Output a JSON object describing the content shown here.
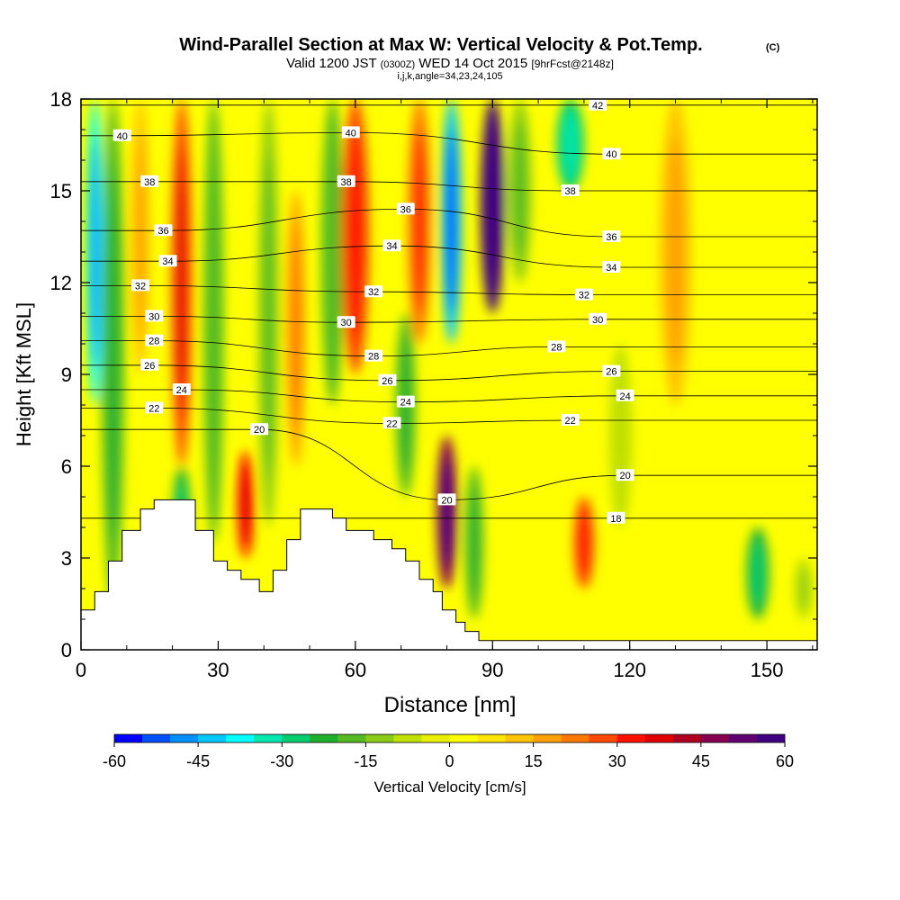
{
  "header": {
    "title": "Wind-Parallel Section at Max W: Vertical Velocity & Pot.Temp.",
    "copyright": "(C)",
    "valid_prefix": "Valid 1200 JST",
    "valid_utc": "(0300Z)",
    "valid_date": "WED 14 Oct 2015",
    "forecast": "[9hrFcst@2148z]",
    "indices": "i,j,k,angle=34,23,24,105"
  },
  "chart_data": {
    "type": "heatmap",
    "xlabel": "Distance [nm]",
    "ylabel": "Height [Kft MSL]",
    "xlim": [
      0,
      161
    ],
    "ylim": [
      0,
      18
    ],
    "x_ticks": [
      0,
      30,
      60,
      90,
      120,
      150
    ],
    "y_ticks": [
      0,
      3,
      6,
      9,
      12,
      15,
      18
    ],
    "colorbar": {
      "label": "Vertical Velocity [cm/s]",
      "range": [
        -60,
        60
      ],
      "ticks": [
        -60,
        -45,
        -30,
        -15,
        0,
        15,
        30,
        45,
        60
      ],
      "colors": [
        "#0000ff",
        "#0050ff",
        "#0090ff",
        "#00c8ff",
        "#00ffff",
        "#00e8b0",
        "#00cc70",
        "#20b030",
        "#55bb20",
        "#8ccc18",
        "#c0e000",
        "#e8f000",
        "#ffff00",
        "#ffe400",
        "#ffc400",
        "#ffa000",
        "#ff7800",
        "#ff4800",
        "#ff1000",
        "#e00000",
        "#b00020",
        "#880050",
        "#600070",
        "#400080"
      ]
    },
    "velocity_columns": [
      {
        "x": 3,
        "w": 1.8,
        "ybot": 8.0,
        "ytop": 18,
        "v": -38
      },
      {
        "x": 7,
        "w": 2.5,
        "ybot": 1.5,
        "ytop": 18,
        "v": -18
      },
      {
        "x": 13,
        "w": 2.0,
        "ybot": 9.0,
        "ytop": 18,
        "v": 14
      },
      {
        "x": 22,
        "w": 2.2,
        "ybot": 6.0,
        "ytop": 18,
        "v": 28
      },
      {
        "x": 22,
        "w": 2.0,
        "ybot": 2.5,
        "ytop": 6.0,
        "v": -22
      },
      {
        "x": 29,
        "w": 2.2,
        "ybot": 3.5,
        "ytop": 18,
        "v": -16
      },
      {
        "x": 36,
        "w": 1.8,
        "ybot": 3.0,
        "ytop": 6.5,
        "v": 30
      },
      {
        "x": 41,
        "w": 2.2,
        "ybot": 4.0,
        "ytop": 18,
        "v": -14
      },
      {
        "x": 47,
        "w": 2.0,
        "ybot": 6.0,
        "ytop": 15,
        "v": 16
      },
      {
        "x": 55,
        "w": 2.5,
        "ybot": 8.0,
        "ytop": 18,
        "v": -16
      },
      {
        "x": 60,
        "w": 3.0,
        "ybot": 9.0,
        "ytop": 18,
        "v": 26
      },
      {
        "x": 71,
        "w": 2.2,
        "ybot": 5.0,
        "ytop": 11,
        "v": -18
      },
      {
        "x": 74,
        "w": 2.5,
        "ybot": 10.0,
        "ytop": 18,
        "v": 24
      },
      {
        "x": 80,
        "w": 2.2,
        "ybot": 2.0,
        "ytop": 7.0,
        "v": 48
      },
      {
        "x": 81,
        "w": 2.2,
        "ybot": 10.0,
        "ytop": 18,
        "v": -44
      },
      {
        "x": 86,
        "w": 2.0,
        "ybot": 1.0,
        "ytop": 6.0,
        "v": -18
      },
      {
        "x": 90,
        "w": 2.6,
        "ybot": 11.0,
        "ytop": 18,
        "v": 55
      },
      {
        "x": 96,
        "w": 2.5,
        "ybot": 12.0,
        "ytop": 18,
        "v": -14
      },
      {
        "x": 107,
        "w": 3.0,
        "ybot": 15.0,
        "ytop": 18,
        "v": -28
      },
      {
        "x": 110,
        "w": 2.2,
        "ybot": 2.0,
        "ytop": 5.0,
        "v": 26
      },
      {
        "x": 118,
        "w": 2.5,
        "ybot": 4.0,
        "ytop": 10.0,
        "v": -8
      },
      {
        "x": 130,
        "w": 3.5,
        "ybot": 8.0,
        "ytop": 18,
        "v": 14
      },
      {
        "x": 148,
        "w": 2.5,
        "ybot": 1.0,
        "ytop": 4.0,
        "v": -24
      },
      {
        "x": 158,
        "w": 2.0,
        "ybot": 1.0,
        "ytop": 3.0,
        "v": -10
      }
    ],
    "theta_contour_labels": [
      {
        "value": "40",
        "x": 9,
        "y": 16.8
      },
      {
        "value": "38",
        "x": 15,
        "y": 15.3
      },
      {
        "value": "36",
        "x": 18,
        "y": 13.7
      },
      {
        "value": "34",
        "x": 19,
        "y": 12.7
      },
      {
        "value": "32",
        "x": 13,
        "y": 11.9
      },
      {
        "value": "30",
        "x": 16,
        "y": 10.9
      },
      {
        "value": "28",
        "x": 16,
        "y": 10.1
      },
      {
        "value": "26",
        "x": 15,
        "y": 9.3
      },
      {
        "value": "24",
        "x": 22,
        "y": 8.5
      },
      {
        "value": "22",
        "x": 16,
        "y": 7.9
      },
      {
        "value": "20",
        "x": 39,
        "y": 7.2
      },
      {
        "value": "40",
        "x": 59,
        "y": 16.9
      },
      {
        "value": "38",
        "x": 58,
        "y": 15.3
      },
      {
        "value": "36",
        "x": 71,
        "y": 14.4
      },
      {
        "value": "34",
        "x": 68,
        "y": 13.2
      },
      {
        "value": "32",
        "x": 64,
        "y": 11.7
      },
      {
        "value": "30",
        "x": 58,
        "y": 10.7
      },
      {
        "value": "28",
        "x": 64,
        "y": 9.6
      },
      {
        "value": "26",
        "x": 67,
        "y": 8.8
      },
      {
        "value": "24",
        "x": 71,
        "y": 8.1
      },
      {
        "value": "22",
        "x": 68,
        "y": 7.4
      },
      {
        "value": "20",
        "x": 80,
        "y": 4.9
      },
      {
        "value": "42",
        "x": 113,
        "y": 17.8
      },
      {
        "value": "40",
        "x": 116,
        "y": 16.2
      },
      {
        "value": "38",
        "x": 107,
        "y": 15.0
      },
      {
        "value": "36",
        "x": 116,
        "y": 13.5
      },
      {
        "value": "34",
        "x": 116,
        "y": 12.5
      },
      {
        "value": "32",
        "x": 110,
        "y": 11.6
      },
      {
        "value": "30",
        "x": 113,
        "y": 10.8
      },
      {
        "value": "28",
        "x": 104,
        "y": 9.9
      },
      {
        "value": "26",
        "x": 116,
        "y": 9.1
      },
      {
        "value": "24",
        "x": 119,
        "y": 8.3
      },
      {
        "value": "22",
        "x": 107,
        "y": 7.5
      },
      {
        "value": "20",
        "x": 119,
        "y": 5.7
      },
      {
        "value": "18",
        "x": 117,
        "y": 4.3
      }
    ],
    "terrain": [
      [
        0,
        1.3
      ],
      [
        3,
        1.3
      ],
      [
        3,
        1.9
      ],
      [
        6,
        1.9
      ],
      [
        6,
        2.9
      ],
      [
        9,
        2.9
      ],
      [
        9,
        3.9
      ],
      [
        13,
        3.9
      ],
      [
        13,
        4.6
      ],
      [
        16,
        4.6
      ],
      [
        16,
        4.9
      ],
      [
        25,
        4.9
      ],
      [
        25,
        3.9
      ],
      [
        29,
        3.9
      ],
      [
        29,
        2.9
      ],
      [
        32,
        2.9
      ],
      [
        32,
        2.6
      ],
      [
        35,
        2.6
      ],
      [
        35,
        2.3
      ],
      [
        39,
        2.3
      ],
      [
        39,
        1.9
      ],
      [
        42,
        1.9
      ],
      [
        42,
        2.6
      ],
      [
        45,
        2.6
      ],
      [
        45,
        3.6
      ],
      [
        48,
        3.6
      ],
      [
        48,
        4.6
      ],
      [
        55,
        4.6
      ],
      [
        55,
        4.3
      ],
      [
        58,
        4.3
      ],
      [
        58,
        3.9
      ],
      [
        64,
        3.9
      ],
      [
        64,
        3.6
      ],
      [
        68,
        3.6
      ],
      [
        68,
        3.3
      ],
      [
        71,
        3.3
      ],
      [
        71,
        2.9
      ],
      [
        74,
        2.9
      ],
      [
        74,
        2.3
      ],
      [
        77,
        2.3
      ],
      [
        77,
        1.9
      ],
      [
        79,
        1.9
      ],
      [
        79,
        1.3
      ],
      [
        82,
        1.3
      ],
      [
        82,
        0.9
      ],
      [
        84,
        0.9
      ],
      [
        84,
        0.6
      ],
      [
        87,
        0.6
      ],
      [
        87,
        0.3
      ],
      [
        161,
        0.3
      ]
    ]
  }
}
